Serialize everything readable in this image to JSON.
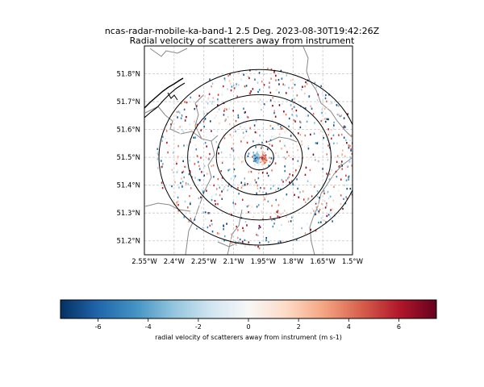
{
  "figure": {
    "title_line1": "ncas-radar-mobile-ka-band-1 2.5 Deg. 2023-08-30T19:42:26Z",
    "title_line2": "Radial velocity of scatterers away from instrument"
  },
  "map": {
    "lon_ticks": [
      "2.55°W",
      "2.4°W",
      "2.25°W",
      "2.1°W",
      "1.95°W",
      "1.8°W",
      "1.65°W",
      "1.5°W"
    ],
    "lat_ticks": [
      "51.8°N",
      "51.7°N",
      "51.6°N",
      "51.5°N",
      "51.4°N",
      "51.3°N",
      "51.2°N"
    ],
    "lon_tick_values": [
      -2.55,
      -2.4,
      -2.25,
      -2.1,
      -1.95,
      -1.8,
      -1.65,
      -1.5
    ],
    "lat_tick_values": [
      51.8,
      51.7,
      51.6,
      51.5,
      51.4,
      51.3,
      51.2
    ],
    "lon_range": [
      -2.55,
      -1.5
    ],
    "lat_range": [
      51.15,
      51.9
    ],
    "radar_location": {
      "lon": -1.97,
      "lat": 51.5
    },
    "range_rings_km": [
      5,
      15,
      25,
      35
    ],
    "gridlines": true,
    "border_color": "#888888",
    "coast_color": "#000000"
  },
  "colorbar": {
    "label": "radial velocity of scatterers away from instrument (m s-1)",
    "ticks": [
      "-6",
      "-4",
      "-2",
      "0",
      "2",
      "4",
      "6"
    ],
    "tick_values": [
      -6,
      -4,
      -2,
      0,
      2,
      4,
      6
    ],
    "range": [
      -7.5,
      7.5
    ],
    "colormap": "RdBu_r",
    "colors": [
      "#053061",
      "#2166ac",
      "#4393c3",
      "#92c5de",
      "#d1e5f0",
      "#f7f7f7",
      "#fddbc7",
      "#f4a582",
      "#d6604d",
      "#b2182b",
      "#67001f"
    ]
  }
}
